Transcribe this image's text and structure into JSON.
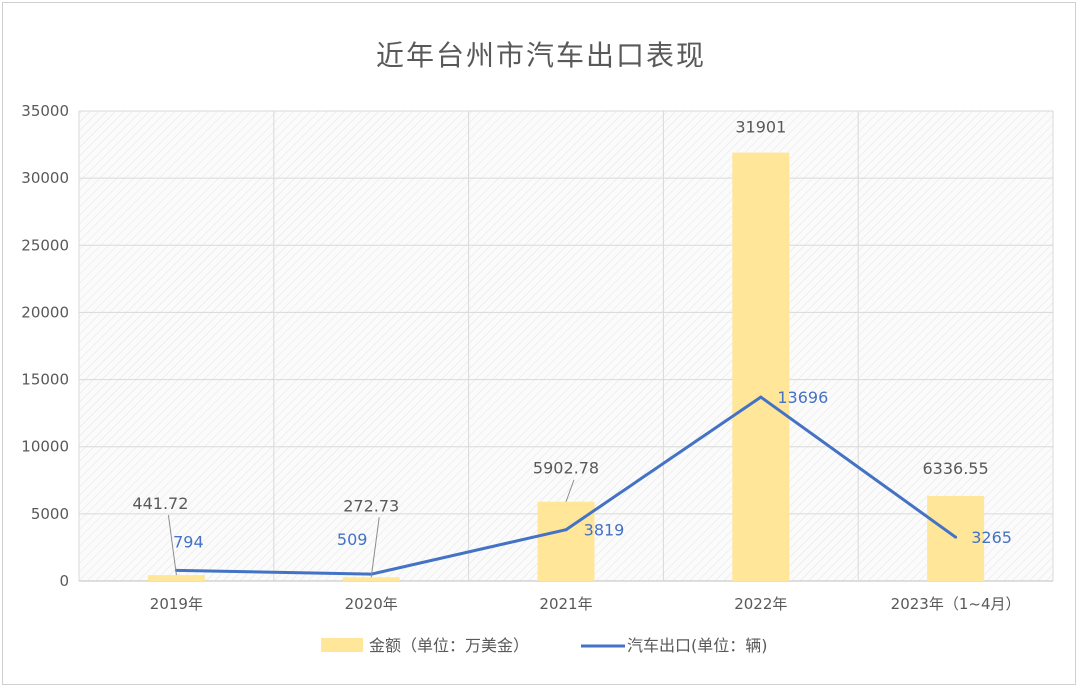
{
  "chart_data": {
    "type": "bar",
    "title": "近年台州市汽车出口表现",
    "categories": [
      "2019年",
      "2020年",
      "2021年",
      "2022年",
      "2023年（1~4月）"
    ],
    "ylim": [
      0,
      35000
    ],
    "yticks": [
      0,
      5000,
      10000,
      15000,
      20000,
      25000,
      30000,
      35000
    ],
    "grid": true,
    "legend_position": "bottom",
    "series": [
      {
        "name": "金额（单位：万美金）",
        "type": "bar",
        "color": "#ffe699",
        "values": [
          441.72,
          272.73,
          5902.78,
          31901,
          6336.55
        ],
        "labels": [
          "441.72",
          "272.73",
          "5902.78",
          "31901",
          "6336.55"
        ]
      },
      {
        "name": "汽车出口(单位：辆)",
        "type": "line",
        "color": "#4472c4",
        "values": [
          794,
          509,
          3819,
          13696,
          3265
        ],
        "labels": [
          "794",
          "509",
          "3819",
          "13696",
          "3265"
        ]
      }
    ]
  }
}
